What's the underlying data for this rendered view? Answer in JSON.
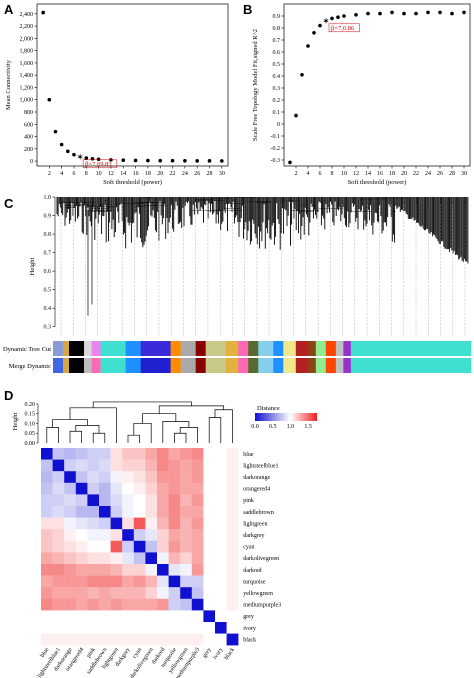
{
  "panels": {
    "a": {
      "letter": "A"
    },
    "b": {
      "letter": "B"
    },
    "c": {
      "letter": "C"
    },
    "d": {
      "letter": "D"
    }
  },
  "chart_data": [
    {
      "id": "A",
      "type": "scatter",
      "xlabel": "Soft threshold (power)",
      "ylabel": "Mean Connectivity",
      "xlim": [
        0,
        31
      ],
      "ylim": [
        -80,
        2560
      ],
      "xticks": [
        2,
        4,
        6,
        8,
        10,
        12,
        14,
        16,
        18,
        20,
        22,
        24,
        26,
        28,
        30
      ],
      "yticks": [
        0,
        200,
        400,
        600,
        800,
        1000,
        1200,
        1400,
        1600,
        1800,
        2000,
        2200,
        2400
      ],
      "ytick_labels": [
        "0",
        "200",
        "400",
        "600",
        "800",
        "1,000",
        "1,200",
        "1,400",
        "1,600",
        "1,800",
        "2,000",
        "2,200",
        "2,400"
      ],
      "x": [
        1,
        2,
        3,
        4,
        5,
        6,
        7,
        8,
        9,
        10,
        12,
        14,
        16,
        18,
        20,
        22,
        24,
        26,
        28,
        30
      ],
      "y": [
        2420,
        1000,
        480,
        270,
        160,
        105,
        70,
        50,
        38,
        30,
        20,
        14,
        10,
        8,
        7,
        6,
        5,
        4,
        4,
        3
      ],
      "highlight": {
        "x": 7,
        "y": 70,
        "label": "β=7,69.83"
      },
      "grid": false
    },
    {
      "id": "B",
      "type": "scatter",
      "xlabel": "Soft threshold (power)",
      "ylabel": "Scale Free Topology Model Fit,signed R^2",
      "xlim": [
        0,
        31
      ],
      "ylim": [
        -0.35,
        1.0
      ],
      "xticks": [
        2,
        4,
        6,
        8,
        10,
        12,
        14,
        16,
        18,
        20,
        22,
        24,
        26,
        28,
        30
      ],
      "yticks": [
        -0.3,
        -0.2,
        -0.1,
        0,
        0.1,
        0.2,
        0.3,
        0.4,
        0.5,
        0.6,
        0.7,
        0.8,
        0.9
      ],
      "ytick_labels": [
        "-0.3",
        "-0.2",
        "-0.1",
        "0",
        "0.1",
        "0.2",
        "0.3",
        "0.4",
        "0.5",
        "0.6",
        "0.7",
        "0.8",
        "0.9"
      ],
      "x": [
        1,
        2,
        3,
        4,
        5,
        6,
        7,
        8,
        9,
        10,
        12,
        14,
        16,
        18,
        20,
        22,
        24,
        26,
        28,
        30
      ],
      "y": [
        -0.32,
        0.07,
        0.41,
        0.65,
        0.76,
        0.82,
        0.86,
        0.88,
        0.89,
        0.9,
        0.91,
        0.92,
        0.92,
        0.93,
        0.92,
        0.92,
        0.93,
        0.93,
        0.92,
        0.93
      ],
      "highlight": {
        "x": 7,
        "y": 0.86,
        "label": "β=7,0.86"
      },
      "grid": false
    },
    {
      "id": "C",
      "type": "dendrogram",
      "ylabel": "Height",
      "ylim": [
        0.25,
        1.0
      ],
      "yticks": [
        0.3,
        0.4,
        0.5,
        0.6,
        0.7,
        0.8,
        0.9,
        1.0
      ],
      "ytick_labels": [
        "0.3",
        "0.4",
        "0.5",
        "0.6",
        "0.7",
        "0.8",
        "0.9",
        "1.0"
      ],
      "color_bars": [
        "Dynamic Tree Cut",
        "Merge Dynamic"
      ],
      "modules": [
        {
          "color": "#8a9bd6",
          "w": 2
        },
        {
          "color": "#d6a840",
          "w": 1.2
        },
        {
          "color": "#000000",
          "w": 3
        },
        {
          "color": "#d9d9d9",
          "w": 1.5
        },
        {
          "color": "#ee82ee",
          "w": 1.8
        },
        {
          "color": "#40e0d0",
          "w": 5
        },
        {
          "color": "#1e90ff",
          "w": 3
        },
        {
          "color": "#3a2bd9",
          "w": 6
        },
        {
          "color": "#ff8c00",
          "w": 2
        },
        {
          "color": "#a9a9a9",
          "w": 3
        },
        {
          "color": "#8b0000",
          "w": 2
        },
        {
          "color": "#c9c98a",
          "w": 4
        },
        {
          "color": "#e0b040",
          "w": 2.5
        },
        {
          "color": "#ff69b4",
          "w": 2
        },
        {
          "color": "#556b2f",
          "w": 2
        },
        {
          "color": "#87ceeb",
          "w": 3
        },
        {
          "color": "#1e90ff",
          "w": 2
        },
        {
          "color": "#f0e68c",
          "w": 2.5
        },
        {
          "color": "#b22222",
          "w": 2.5
        },
        {
          "color": "#8b4513",
          "w": 1.5
        },
        {
          "color": "#90ee90",
          "w": 2
        },
        {
          "color": "#ff4500",
          "w": 2
        },
        {
          "color": "#c0c0c0",
          "w": 1.5
        },
        {
          "color": "#9932cc",
          "w": 1.5
        },
        {
          "color": "#40e0d0",
          "w": 24
        }
      ],
      "modules_merged": [
        {
          "color": "#4166e1",
          "w": 2
        },
        {
          "color": "#d6a840",
          "w": 1.2
        },
        {
          "color": "#000000",
          "w": 3
        },
        {
          "color": "#bdbdbd",
          "w": 1.5
        },
        {
          "color": "#ff69b4",
          "w": 1.8
        },
        {
          "color": "#40e0d0",
          "w": 5
        },
        {
          "color": "#1e90ff",
          "w": 3
        },
        {
          "color": "#2020d0",
          "w": 6
        },
        {
          "color": "#ff8c00",
          "w": 2
        },
        {
          "color": "#a9a9a9",
          "w": 3
        },
        {
          "color": "#8b0000",
          "w": 2
        },
        {
          "color": "#c9c98a",
          "w": 4
        },
        {
          "color": "#e0b040",
          "w": 2.5
        },
        {
          "color": "#ff69b4",
          "w": 2
        },
        {
          "color": "#556b2f",
          "w": 2
        },
        {
          "color": "#87ceeb",
          "w": 3
        },
        {
          "color": "#1e90ff",
          "w": 2
        },
        {
          "color": "#f0e68c",
          "w": 2.5
        },
        {
          "color": "#b22222",
          "w": 2.5
        },
        {
          "color": "#8b4513",
          "w": 1.5
        },
        {
          "color": "#90ee90",
          "w": 2
        },
        {
          "color": "#ff4500",
          "w": 2
        },
        {
          "color": "#c0c0c0",
          "w": 1.5
        },
        {
          "color": "#9932cc",
          "w": 1.5
        },
        {
          "color": "#40e0d0",
          "w": 24
        }
      ]
    },
    {
      "id": "D",
      "type": "heatmap",
      "ylabel": "Height",
      "dendro_yticks": [
        "0.00",
        "0.05",
        "0.10",
        "0.15",
        "0.20"
      ],
      "legend_title": "Distance",
      "legend_ticks": [
        "0.0",
        "0.5",
        "1.0",
        "1.5"
      ],
      "colors": {
        "low": "#1010d0",
        "mid": "#ffffff",
        "high": "#ee2020"
      },
      "labels": [
        "blue",
        "lightsteelblue1",
        "darkorange",
        "orangered4",
        "pink",
        "saddlebrown",
        "lightgreen",
        "darkgrey",
        "cyan",
        "darkolivegreen",
        "darkred",
        "turquoise",
        "yellowgreen",
        "mediumpurple3",
        "grey",
        "ivory",
        "black"
      ],
      "matrix": [
        [
          0.0,
          0.75,
          0.7,
          0.75,
          0.8,
          0.8,
          1.1,
          1.2,
          1.2,
          1.3,
          1.4,
          1.3,
          1.35,
          1.4,
          1.0,
          1.0,
          1.05
        ],
        [
          0.75,
          0.0,
          0.8,
          0.85,
          0.8,
          0.85,
          1.1,
          1.15,
          1.15,
          1.25,
          1.4,
          1.35,
          1.3,
          1.35,
          1.0,
          1.0,
          1.05
        ],
        [
          0.7,
          0.8,
          0.0,
          0.75,
          0.85,
          0.8,
          0.95,
          1.05,
          1.1,
          1.2,
          1.35,
          1.35,
          1.3,
          1.35,
          1.0,
          1.0,
          1.05
        ],
        [
          0.75,
          0.85,
          0.75,
          0.0,
          0.8,
          0.7,
          0.9,
          1.0,
          1.05,
          1.15,
          1.3,
          1.35,
          1.3,
          1.3,
          1.0,
          1.0,
          1.05
        ],
        [
          0.8,
          0.8,
          0.85,
          0.8,
          0.0,
          0.7,
          0.85,
          0.95,
          1.0,
          1.1,
          1.3,
          1.4,
          1.25,
          1.35,
          1.0,
          1.0,
          1.05
        ],
        [
          0.8,
          0.85,
          0.8,
          0.7,
          0.7,
          0.0,
          0.8,
          0.95,
          1.0,
          1.1,
          1.3,
          1.4,
          1.3,
          1.3,
          1.0,
          1.0,
          1.05
        ],
        [
          1.1,
          1.1,
          0.95,
          0.9,
          0.85,
          0.8,
          0.0,
          1.1,
          1.55,
          1.05,
          1.25,
          1.4,
          1.25,
          1.35,
          1.0,
          1.0,
          1.05
        ],
        [
          1.2,
          1.15,
          1.05,
          1.0,
          0.95,
          0.95,
          1.1,
          0.0,
          0.8,
          0.9,
          1.15,
          1.3,
          1.25,
          1.3,
          1.0,
          1.0,
          1.05
        ],
        [
          1.2,
          1.15,
          1.1,
          1.05,
          1.0,
          1.0,
          1.55,
          0.8,
          0.0,
          0.75,
          1.15,
          1.35,
          1.25,
          1.3,
          1.0,
          1.0,
          1.05
        ],
        [
          1.3,
          1.25,
          1.2,
          1.15,
          1.1,
          1.1,
          1.05,
          0.9,
          0.75,
          0.0,
          0.95,
          1.25,
          1.15,
          1.3,
          1.0,
          1.0,
          1.05
        ],
        [
          1.4,
          1.4,
          1.35,
          1.3,
          1.3,
          1.3,
          1.25,
          1.15,
          1.15,
          0.95,
          0.0,
          0.9,
          0.95,
          1.35,
          1.0,
          1.0,
          1.05
        ],
        [
          1.3,
          1.35,
          1.35,
          1.35,
          1.4,
          1.4,
          1.4,
          1.3,
          1.35,
          1.25,
          0.9,
          0.0,
          0.8,
          0.8,
          1.0,
          1.0,
          1.05
        ],
        [
          1.35,
          1.3,
          1.3,
          1.3,
          1.25,
          1.3,
          1.25,
          1.25,
          1.25,
          1.15,
          0.95,
          0.8,
          0.0,
          0.75,
          1.0,
          1.0,
          1.05
        ],
        [
          1.4,
          1.35,
          1.35,
          1.3,
          1.35,
          1.3,
          1.35,
          1.3,
          1.3,
          1.3,
          1.35,
          0.8,
          0.75,
          0.0,
          1.0,
          1.0,
          1.05
        ],
        [
          1.0,
          1.0,
          1.0,
          1.0,
          1.0,
          1.0,
          1.0,
          1.0,
          1.0,
          1.0,
          1.0,
          1.0,
          1.0,
          1.0,
          0.0,
          1.0,
          1.0
        ],
        [
          1.0,
          1.0,
          1.0,
          1.0,
          1.0,
          1.0,
          1.0,
          1.0,
          1.0,
          1.0,
          1.0,
          1.0,
          1.0,
          1.0,
          1.0,
          0.0,
          1.0
        ],
        [
          1.05,
          1.05,
          1.05,
          1.05,
          1.05,
          1.05,
          1.05,
          1.05,
          1.05,
          1.05,
          1.05,
          1.05,
          1.05,
          1.05,
          1.0,
          1.0,
          0.0
        ]
      ]
    }
  ]
}
